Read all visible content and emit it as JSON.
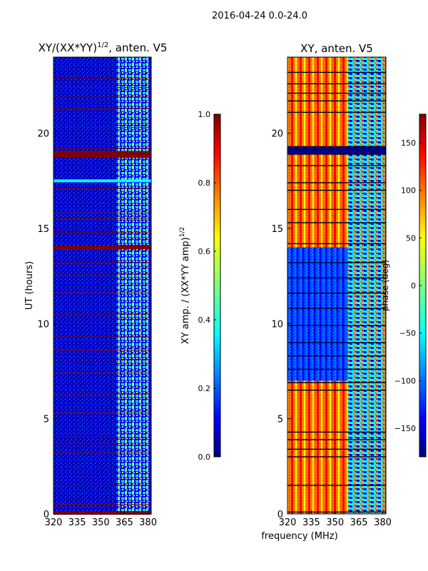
{
  "figure": {
    "suptitle": "2016-04-24 0.0-24.0",
    "shared_xlabel": "frequency (MHz)"
  },
  "colors": {
    "jet": [
      "#00007f",
      "#0000ff",
      "#007fff",
      "#00ffff",
      "#7fff7f",
      "#ffff00",
      "#ff7f00",
      "#ff0000",
      "#7f0000"
    ],
    "flag_line": "#7f0000",
    "dark_line": "#000033"
  },
  "chart_data": [
    {
      "type": "heatmap",
      "title_main": "XY/(XX*YY)",
      "title_sup": "1/2",
      "title_tail": ", anten. V5",
      "xlabel": "",
      "ylabel": "UT (hours)",
      "xlim": [
        320,
        382
      ],
      "ylim": [
        0,
        24
      ],
      "xticks": [
        320,
        335,
        350,
        365,
        380
      ],
      "xtick_labels": [
        "320",
        "335",
        "350",
        "365",
        "380"
      ],
      "yticks": [
        0,
        5,
        10,
        15,
        20
      ],
      "ytick_labels": [
        "0",
        "5",
        "10",
        "15",
        "20"
      ],
      "colorbar": {
        "label_main": "XY amp. / (XX*YY amp)",
        "label_sup": "1/2",
        "range": [
          0.0,
          1.0
        ],
        "ticks": [
          0.0,
          0.2,
          0.4,
          0.6,
          0.8,
          1.0
        ],
        "tick_labels": [
          "0.0",
          "0.2",
          "0.4",
          "0.6",
          "0.8",
          "1.0"
        ]
      },
      "bright_band_mhz": [
        360,
        381
      ],
      "saturated_rows_hours": [
        0.05,
        18.9,
        14.0,
        17.5
      ],
      "flag_lines_hours": [
        0.5,
        1.5,
        3.2,
        3.6,
        4.0,
        5.3,
        6.3,
        7.4,
        8.1,
        8.6,
        9.3,
        10.5,
        11.6,
        12.6,
        13.2,
        14.8,
        15.5,
        15.8,
        17.1,
        19.2,
        20.3,
        21.3,
        21.9,
        22.4,
        22.9
      ]
    },
    {
      "type": "heatmap",
      "title": "XY, anten. V5",
      "xlabel": "",
      "ylabel": "",
      "xlim": [
        320,
        382
      ],
      "ylim": [
        0,
        24
      ],
      "xticks": [
        320,
        335,
        350,
        365,
        380
      ],
      "xtick_labels": [
        "320",
        "335",
        "350",
        "365",
        "380"
      ],
      "yticks": [
        0,
        5,
        10,
        15,
        20
      ],
      "ytick_labels": [
        "0",
        "5",
        "10",
        "15",
        "20"
      ],
      "colorbar": {
        "label": "phase (deg)",
        "range": [
          -180,
          180
        ],
        "ticks": [
          -150,
          -100,
          -50,
          0,
          50,
          100,
          150
        ],
        "tick_labels": [
          "−150",
          "−100",
          "−50",
          "0",
          "50",
          "100",
          "150"
        ]
      },
      "blue_block_hours": [
        7.0,
        14.0
      ],
      "mixed_band_mhz": [
        358,
        381
      ],
      "dark_lines_hours": [
        0.1,
        1.5,
        3.0,
        3.4,
        3.9,
        4.3,
        6.5,
        6.9,
        7.6,
        8.3,
        9.0,
        9.9,
        10.8,
        11.6,
        12.4,
        13.2,
        14.2,
        15.3,
        16.0,
        17.0,
        17.4,
        18.3,
        18.9,
        19.3,
        21.1,
        21.7,
        22.1,
        22.6,
        23.2
      ]
    }
  ]
}
